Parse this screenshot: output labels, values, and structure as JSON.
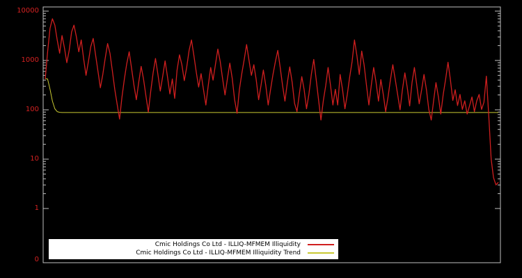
{
  "colors": {
    "background": "#000000",
    "axis": "#c0c0c0",
    "tick_label": "#d62222",
    "series": "#d01f1f",
    "trend": "#c9c932",
    "legend_bg": "#ffffff",
    "legend_text": "#000000"
  },
  "y_axis": {
    "tick_labels": [
      "10000",
      "1000",
      "100",
      "10",
      "1",
      "0"
    ]
  },
  "legend": {
    "items": [
      {
        "label": "Cmic Holdings Co Ltd - ILLIQ-MFMEM Illiquidity",
        "color_key": "series"
      },
      {
        "label": "Cmic Holdings Co Ltd - ILLIQ-MFMEM Illiquidity Trend",
        "color_key": "trend"
      }
    ]
  },
  "chart_data": {
    "type": "line",
    "title": "",
    "xlabel": "",
    "ylabel": "",
    "y_scale": "log",
    "ylim": [
      1,
      10000
    ],
    "grid": false,
    "legend_position": "bottom-center",
    "series": [
      {
        "name": "Cmic Holdings Co Ltd - ILLIQ-MFMEM Illiquidity",
        "values": [
          420,
          1500,
          4500,
          7000,
          5200,
          2600,
          1400,
          3200,
          1800,
          900,
          1600,
          3800,
          5200,
          3000,
          1500,
          2600,
          1100,
          500,
          950,
          1900,
          2800,
          1300,
          600,
          280,
          520,
          1100,
          2200,
          1400,
          620,
          260,
          130,
          65,
          180,
          420,
          860,
          1500,
          700,
          320,
          160,
          360,
          760,
          420,
          190,
          90,
          240,
          560,
          1100,
          520,
          240,
          480,
          980,
          460,
          210,
          420,
          170,
          640,
          1300,
          820,
          390,
          720,
          1600,
          2600,
          1250,
          580,
          290,
          540,
          260,
          125,
          310,
          720,
          400,
          840,
          1700,
          950,
          420,
          200,
          430,
          880,
          430,
          160,
          85,
          260,
          540,
          1050,
          2100,
          1000,
          500,
          820,
          410,
          160,
          310,
          640,
          310,
          125,
          260,
          520,
          950,
          1600,
          720,
          310,
          150,
          360,
          740,
          360,
          135,
          92,
          210,
          470,
          255,
          105,
          210,
          520,
          1050,
          420,
          160,
          62,
          155,
          310,
          720,
          310,
          125,
          260,
          125,
          520,
          260,
          105,
          205,
          460,
          950,
          2600,
          1250,
          520,
          1550,
          820,
          310,
          125,
          310,
          720,
          360,
          150,
          410,
          205,
          92,
          185,
          410,
          820,
          410,
          205,
          100,
          255,
          560,
          285,
          120,
          355,
          720,
          310,
          132,
          255,
          520,
          255,
          102,
          62,
          152,
          355,
          182,
          82,
          205,
          410,
          920,
          410,
          155,
          255,
          122,
          205,
          102,
          152,
          82,
          122,
          182,
          92,
          152,
          205,
          102,
          142,
          480,
          78,
          10,
          4.2,
          3.0,
          3.4
        ]
      },
      {
        "name": "Cmic Holdings Co Ltd - ILLIQ-MFMEM Illiquidity Trend",
        "initial_values": [
          430,
          420,
          260,
          150,
          105,
          92,
          89
        ],
        "flat_value": 88
      }
    ]
  }
}
